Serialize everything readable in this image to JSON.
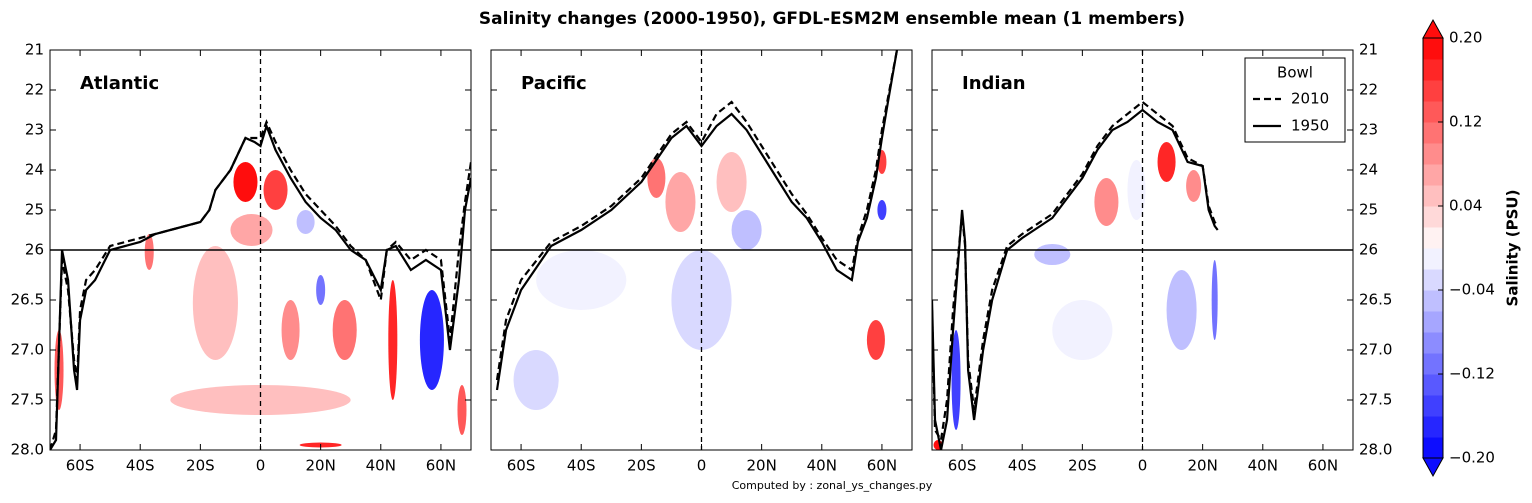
{
  "title": "Salinity changes (2000-1950), GFDL-ESM2M ensemble mean (1 members)",
  "footer": "Computed by : zonal_ys_changes.py",
  "colorbar": {
    "label": "Salinity (PSU)",
    "lim": [
      -0.2,
      0.2
    ],
    "step": 0.02,
    "ticks": [
      {
        "value": 0.2,
        "label": "0.20"
      },
      0.12,
      0.04,
      {
        "value": -0.04,
        "label": "−0.04"
      },
      {
        "value": -0.12,
        "label": "−0.12"
      },
      {
        "value": -0.2,
        "label": "−0.20"
      }
    ]
  },
  "chart_data": [
    {
      "type": "contour",
      "title": "Atlantic",
      "xlim": [
        -70,
        70
      ],
      "ylim": [
        21,
        28
      ],
      "ysplit": 26,
      "ylabels": "left",
      "xticks": [
        {
          "value": -60,
          "label": "60S"
        },
        {
          "value": -40,
          "label": "40S"
        },
        {
          "value": -20,
          "label": "20S"
        },
        0,
        {
          "value": 20,
          "label": "20N"
        },
        {
          "value": 40,
          "label": "40N"
        },
        {
          "value": 60,
          "label": "60N"
        }
      ],
      "yticks": [
        21,
        22,
        23,
        24,
        25,
        26,
        26.5,
        {
          "value": 27,
          "label": "27.0"
        },
        27.5,
        {
          "value": 28,
          "label": "28.0"
        }
      ],
      "series": [
        {
          "name": "2010",
          "color": "#000000",
          "dash": true,
          "x": [
            -70,
            -68,
            -66,
            -64,
            -62,
            -61,
            -60,
            -58,
            -55,
            -50,
            -45,
            -40,
            -35,
            -30,
            -20,
            -17,
            -15,
            -10,
            -5,
            -2,
            0,
            2,
            5,
            10,
            15,
            20,
            25,
            30,
            35,
            40,
            42,
            45,
            50,
            55,
            60,
            63,
            66,
            68,
            70
          ],
          "values": [
            28.0,
            27.8,
            26.1,
            26.4,
            27.1,
            27.3,
            26.6,
            26.3,
            26.2,
            25.9,
            25.8,
            25.7,
            25.6,
            25.5,
            25.3,
            25.0,
            24.5,
            24.0,
            23.2,
            23.2,
            23.2,
            22.8,
            23.3,
            24.0,
            24.6,
            25.0,
            25.4,
            25.9,
            26.1,
            26.5,
            26.0,
            25.8,
            26.1,
            26.0,
            26.1,
            26.9,
            26.0,
            24.8,
            23.8
          ]
        },
        {
          "name": "1950",
          "color": "#000000",
          "dash": false,
          "x": [
            -70,
            -68,
            -66,
            -64,
            -62,
            -61,
            -60,
            -58,
            -55,
            -50,
            -45,
            -40,
            -35,
            -30,
            -20,
            -17,
            -15,
            -10,
            -5,
            -2,
            0,
            2,
            5,
            10,
            15,
            20,
            25,
            30,
            35,
            40,
            42,
            45,
            50,
            55,
            60,
            63,
            66,
            68,
            70
          ],
          "values": [
            28.0,
            27.9,
            26.0,
            26.3,
            27.2,
            27.4,
            26.7,
            26.4,
            26.3,
            26.0,
            25.9,
            25.8,
            25.6,
            25.5,
            25.3,
            25.0,
            24.5,
            24.0,
            23.2,
            23.3,
            23.4,
            22.9,
            23.5,
            24.2,
            24.8,
            25.2,
            25.5,
            26.0,
            26.1,
            26.4,
            26.0,
            25.9,
            26.2,
            26.1,
            26.2,
            27.0,
            26.3,
            25.0,
            24.2
          ]
        }
      ],
      "patches": [
        {
          "lat": 0,
          "sig": 27.5,
          "w": 60,
          "h": 0.3,
          "v": 0.04
        },
        {
          "lat": -15,
          "sig": 26.5,
          "w": 15,
          "h": 1.2,
          "v": 0.04
        },
        {
          "lat": -3,
          "sig": 25.5,
          "w": 14,
          "h": 0.8,
          "v": 0.06
        },
        {
          "lat": -5,
          "sig": 24.3,
          "w": 8,
          "h": 1.0,
          "v": 0.2
        },
        {
          "lat": 5,
          "sig": 24.5,
          "w": 8,
          "h": 1.0,
          "v": 0.14
        },
        {
          "lat": 10,
          "sig": 26.8,
          "w": 6,
          "h": 0.6,
          "v": 0.08
        },
        {
          "lat": 28,
          "sig": 26.8,
          "w": 8,
          "h": 0.6,
          "v": 0.1
        },
        {
          "lat": 15,
          "sig": 25.3,
          "w": 6,
          "h": 0.6,
          "v": -0.06
        },
        {
          "lat": 20,
          "sig": 26.4,
          "w": 3,
          "h": 0.3,
          "v": -0.12
        },
        {
          "lat": 57,
          "sig": 26.9,
          "w": 8,
          "h": 1.0,
          "v": -0.18
        },
        {
          "lat": 44,
          "sig": 26.9,
          "w": 3,
          "h": 1.2,
          "v": 0.16
        },
        {
          "lat": -67,
          "sig": 27.2,
          "w": 3,
          "h": 0.8,
          "v": 0.12
        },
        {
          "lat": -37,
          "sig": 25.9,
          "w": 3,
          "h": 0.6,
          "v": 0.1
        },
        {
          "lat": 20,
          "sig": 27.95,
          "w": 14,
          "h": 0.05,
          "v": 0.16
        },
        {
          "lat": 67,
          "sig": 27.6,
          "w": 3,
          "h": 0.5,
          "v": 0.12
        }
      ]
    },
    {
      "type": "contour",
      "title": "Pacific",
      "xlim": [
        -70,
        70
      ],
      "ylim": [
        21,
        28
      ],
      "ysplit": 26,
      "ylabels": "none",
      "xticks": [
        {
          "value": -60,
          "label": "60S"
        },
        {
          "value": -40,
          "label": "40S"
        },
        {
          "value": -20,
          "label": "20S"
        },
        0,
        {
          "value": 20,
          "label": "20N"
        },
        {
          "value": 40,
          "label": "40N"
        },
        {
          "value": 60,
          "label": "60N"
        }
      ],
      "yticks": [
        21,
        22,
        23,
        24,
        25,
        26,
        26.5,
        27,
        27.5,
        28
      ],
      "series": [
        {
          "name": "2010",
          "color": "#000000",
          "dash": true,
          "x": [
            -68,
            -65,
            -60,
            -50,
            -40,
            -30,
            -20,
            -10,
            -5,
            0,
            5,
            10,
            15,
            20,
            25,
            30,
            35,
            40,
            45,
            50,
            52,
            55,
            58,
            60,
            62,
            65
          ],
          "values": [
            27.3,
            26.7,
            26.3,
            25.8,
            25.4,
            24.9,
            24.2,
            23.1,
            22.8,
            23.3,
            22.6,
            22.3,
            22.8,
            23.4,
            24.0,
            24.6,
            25.1,
            25.7,
            26.1,
            26.2,
            25.7,
            25.0,
            24.0,
            23.0,
            22.2,
            21.0
          ]
        },
        {
          "name": "1950",
          "color": "#000000",
          "dash": false,
          "x": [
            -68,
            -65,
            -60,
            -50,
            -40,
            -30,
            -20,
            -10,
            -5,
            0,
            5,
            10,
            15,
            20,
            25,
            30,
            35,
            40,
            45,
            50,
            52,
            55,
            58,
            60,
            62,
            65
          ],
          "values": [
            27.4,
            26.8,
            26.4,
            25.9,
            25.5,
            25.0,
            24.3,
            23.2,
            22.9,
            23.4,
            22.9,
            22.6,
            23.0,
            23.6,
            24.2,
            24.8,
            25.2,
            25.8,
            26.2,
            26.3,
            25.8,
            25.2,
            24.2,
            23.2,
            22.3,
            21.0
          ]
        }
      ],
      "patches": [
        {
          "lat": 0,
          "sig": 26.5,
          "w": 20,
          "h": 1.0,
          "v": -0.04
        },
        {
          "lat": -40,
          "sig": 26.3,
          "w": 30,
          "h": 0.6,
          "v": -0.02
        },
        {
          "lat": -55,
          "sig": 27.3,
          "w": 15,
          "h": 0.6,
          "v": -0.04
        },
        {
          "lat": -7,
          "sig": 24.8,
          "w": 10,
          "h": 1.5,
          "v": 0.06
        },
        {
          "lat": -15,
          "sig": 24.2,
          "w": 6,
          "h": 1.0,
          "v": 0.1
        },
        {
          "lat": 10,
          "sig": 24.3,
          "w": 10,
          "h": 1.5,
          "v": 0.04
        },
        {
          "lat": 15,
          "sig": 25.5,
          "w": 10,
          "h": 1.0,
          "v": -0.06
        },
        {
          "lat": 58,
          "sig": 26.9,
          "w": 6,
          "h": 0.4,
          "v": 0.14
        },
        {
          "lat": 60,
          "sig": 25,
          "w": 3,
          "h": 0.5,
          "v": -0.16
        },
        {
          "lat": 60,
          "sig": 23.8,
          "w": 3,
          "h": 0.6,
          "v": 0.14
        }
      ]
    },
    {
      "type": "contour",
      "title": "Indian",
      "xlim": [
        -70,
        70
      ],
      "ylim": [
        21,
        28
      ],
      "ysplit": 26,
      "ylabels": "right",
      "legend": "upper right",
      "legend_title": "Bowl",
      "xticks": [
        {
          "value": -60,
          "label": "60S"
        },
        {
          "value": -40,
          "label": "40S"
        },
        {
          "value": -20,
          "label": "20S"
        },
        0,
        {
          "value": 20,
          "label": "20N"
        },
        {
          "value": 40,
          "label": "40N"
        },
        {
          "value": 60,
          "label": "60N"
        }
      ],
      "yticks": [
        21,
        22,
        23,
        24,
        25,
        26,
        26.5,
        {
          "value": 27,
          "label": "27.0"
        },
        27.5,
        {
          "value": 28,
          "label": "28.0"
        }
      ],
      "series": [
        {
          "name": "2010",
          "color": "#000000",
          "dash": true,
          "x": [
            -70,
            -69,
            -67,
            -65,
            -63,
            -60,
            -59,
            -58,
            -56,
            -53,
            -50,
            -45,
            -40,
            -30,
            -20,
            -15,
            -10,
            -5,
            0,
            5,
            10,
            15,
            20,
            22,
            24,
            25
          ],
          "values": [
            26.6,
            27.8,
            27.9,
            27.5,
            26.6,
            25.1,
            25.9,
            27.1,
            27.6,
            26.9,
            26.4,
            25.9,
            25.6,
            25.1,
            24.1,
            23.4,
            22.9,
            22.6,
            22.3,
            22.6,
            22.9,
            23.7,
            23.9,
            24.9,
            25.3,
            25.4
          ]
        },
        {
          "name": "1950",
          "color": "#000000",
          "dash": false,
          "x": [
            -70,
            -69,
            -67,
            -65,
            -63,
            -60,
            -59,
            -58,
            -56,
            -53,
            -50,
            -45,
            -40,
            -30,
            -20,
            -15,
            -10,
            -5,
            0,
            5,
            10,
            15,
            20,
            22,
            24,
            25
          ],
          "values": [
            26.5,
            27.7,
            28.0,
            27.7,
            26.8,
            25.0,
            25.8,
            27.2,
            27.7,
            27.0,
            26.5,
            26.0,
            25.7,
            25.2,
            24.2,
            23.5,
            23.0,
            22.8,
            22.5,
            22.8,
            23.0,
            23.8,
            23.9,
            25.0,
            25.4,
            25.5
          ]
        }
      ],
      "patches": [
        {
          "lat": -20,
          "sig": 26.8,
          "w": 20,
          "h": 0.6,
          "v": -0.02
        },
        {
          "lat": -2,
          "sig": 24.5,
          "w": 6,
          "h": 1.5,
          "v": -0.02
        },
        {
          "lat": -62,
          "sig": 27.3,
          "w": 3,
          "h": 1.0,
          "v": -0.16
        },
        {
          "lat": 8,
          "sig": 23.8,
          "w": 6,
          "h": 1.0,
          "v": 0.16
        },
        {
          "lat": -12,
          "sig": 24.8,
          "w": 8,
          "h": 1.2,
          "v": 0.08
        },
        {
          "lat": 17,
          "sig": 24.4,
          "w": 5,
          "h": 0.8,
          "v": 0.08
        },
        {
          "lat": -30,
          "sig": 26.0,
          "w": 12,
          "h": 0.3,
          "v": -0.06
        },
        {
          "lat": 13,
          "sig": 26.6,
          "w": 10,
          "h": 0.8,
          "v": -0.06
        },
        {
          "lat": 24,
          "sig": 26.5,
          "w": 2,
          "h": 0.8,
          "v": -0.12
        },
        {
          "lat": -68,
          "sig": 27.95,
          "w": 3,
          "h": 0.1,
          "v": 0.18
        }
      ]
    }
  ]
}
